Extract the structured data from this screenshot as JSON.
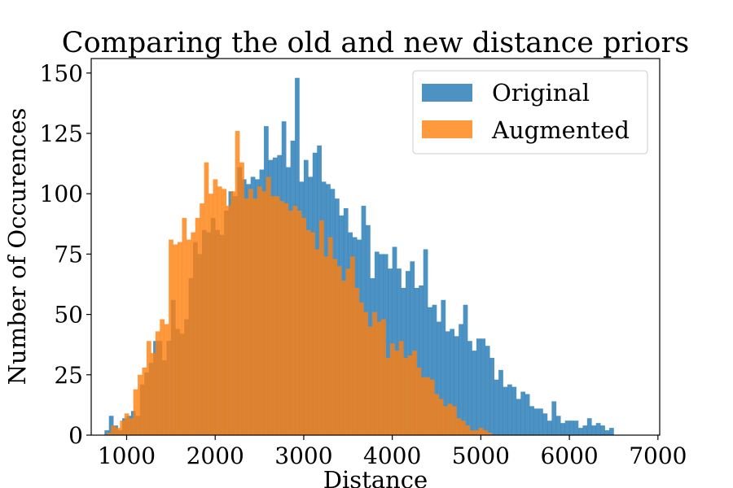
{
  "chart_data": {
    "type": "bar",
    "subtype": "overlaid-histogram",
    "title": "Comparing the old and new distance priors",
    "xlabel": "Distance",
    "ylabel": "Number of Occurences",
    "xlim": [
      600,
      7020
    ],
    "ylim": [
      0,
      156
    ],
    "xticks": [
      1000,
      2000,
      3000,
      4000,
      5000,
      6000,
      7000
    ],
    "yticks": [
      0,
      25,
      50,
      75,
      100,
      125,
      150
    ],
    "grid": false,
    "legend_position": "top-right",
    "series": [
      {
        "name": "Original",
        "color": "#1f77b4",
        "opacity": 0.8,
        "bin_start": 750,
        "bin_width": 50,
        "values": [
          2,
          8,
          4,
          2,
          7,
          8,
          10,
          8,
          21,
          26,
          30,
          39,
          39,
          31,
          39,
          56,
          44,
          42,
          48,
          65,
          80,
          75,
          85,
          84,
          90,
          85,
          83,
          93,
          101,
          99,
          111,
          106,
          104,
          107,
          106,
          110,
          128,
          114,
          115,
          116,
          130,
          111,
          122,
          148,
          105,
          114,
          107,
          117,
          120,
          105,
          104,
          102,
          98,
          91,
          94,
          84,
          82,
          81,
          95,
          87,
          65,
          76,
          75,
          75,
          69,
          78,
          69,
          61,
          68,
          72,
          61,
          62,
          77,
          53,
          54,
          47,
          56,
          43,
          44,
          41,
          46,
          54,
          39,
          35,
          40,
          40,
          37,
          32,
          23,
          27,
          20,
          21,
          20,
          15,
          18,
          17,
          12,
          11,
          11,
          9,
          6,
          14,
          8,
          5,
          6,
          6,
          6,
          3,
          4,
          7,
          4,
          5,
          4,
          2,
          3
        ],
        "values_note": "approximate counts read off the chart"
      },
      {
        "name": "Augmented",
        "color": "#ff7f0e",
        "opacity": 0.8,
        "bin_start": 775,
        "bin_width": 50,
        "values": [
          1,
          4,
          3,
          6,
          9,
          7,
          19,
          25,
          28,
          39,
          34,
          43,
          48,
          46,
          81,
          79,
          80,
          90,
          81,
          84,
          90,
          96,
          113,
          100,
          106,
          103,
          102,
          95,
          101,
          126,
          113,
          98,
          102,
          98,
          103,
          101,
          107,
          99,
          99,
          97,
          96,
          93,
          95,
          93,
          90,
          85,
          84,
          77,
          89,
          74,
          82,
          73,
          70,
          64,
          69,
          74,
          61,
          55,
          51,
          45,
          51,
          47,
          48,
          32,
          38,
          35,
          39,
          32,
          33,
          35,
          28,
          24,
          24,
          23,
          17,
          15,
          12,
          13,
          12,
          7,
          6,
          4,
          2,
          2,
          3,
          2,
          1
        ]
      }
    ]
  }
}
